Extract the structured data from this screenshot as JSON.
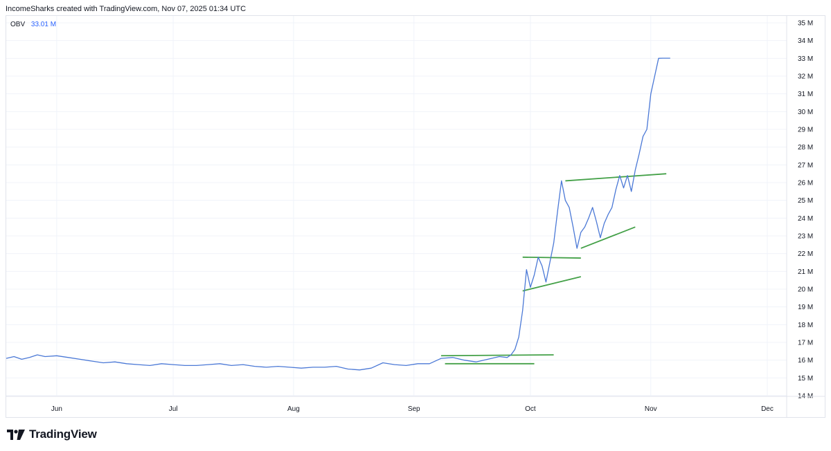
{
  "header": {
    "text": "IncomeSharks created with TradingView.com, Nov 07, 2025 01:34 UTC"
  },
  "legend": {
    "name": "OBV",
    "value": "33.01 M"
  },
  "logo": {
    "wordmark": "TradingView"
  },
  "colors": {
    "series": "#4a78d6",
    "trendlines": "#43a047",
    "grid": "#f0f3fa",
    "text": "#131722",
    "legend_value": "#2962ff"
  },
  "chart_data": {
    "type": "line",
    "title": "",
    "xlabel": "",
    "ylabel": "",
    "x_ticks": [
      "Jun",
      "Jul",
      "Aug",
      "Sep",
      "Oct",
      "Nov",
      "Dec"
    ],
    "y_ticks": [
      "14 M",
      "15 M",
      "16 M",
      "17 M",
      "18 M",
      "19 M",
      "20 M",
      "21 M",
      "22 M",
      "23 M",
      "24 M",
      "25 M",
      "26 M",
      "27 M",
      "28 M",
      "29 M",
      "30 M",
      "31 M",
      "32 M",
      "33 M",
      "34 M",
      "35 M"
    ],
    "ylim": [
      13.5,
      35.6
    ],
    "xlim": [
      "2025-05-19",
      "2025-12-06"
    ],
    "grid": true,
    "series": [
      {
        "name": "OBV",
        "x": [
          "2025-05-19",
          "2025-05-21",
          "2025-05-23",
          "2025-05-25",
          "2025-05-27",
          "2025-05-29",
          "2025-06-01",
          "2025-06-04",
          "2025-06-07",
          "2025-06-10",
          "2025-06-13",
          "2025-06-16",
          "2025-06-19",
          "2025-06-22",
          "2025-06-25",
          "2025-06-28",
          "2025-07-01",
          "2025-07-04",
          "2025-07-07",
          "2025-07-10",
          "2025-07-13",
          "2025-07-16",
          "2025-07-19",
          "2025-07-22",
          "2025-07-25",
          "2025-07-28",
          "2025-07-31",
          "2025-08-03",
          "2025-08-06",
          "2025-08-09",
          "2025-08-12",
          "2025-08-15",
          "2025-08-18",
          "2025-08-21",
          "2025-08-24",
          "2025-08-27",
          "2025-08-30",
          "2025-09-02",
          "2025-09-05",
          "2025-09-08",
          "2025-09-11",
          "2025-09-14",
          "2025-09-17",
          "2025-09-20",
          "2025-09-23",
          "2025-09-25",
          "2025-09-26",
          "2025-09-27",
          "2025-09-28",
          "2025-09-29",
          "2025-09-30",
          "2025-10-01",
          "2025-10-02",
          "2025-10-03",
          "2025-10-04",
          "2025-10-05",
          "2025-10-06",
          "2025-10-07",
          "2025-10-08",
          "2025-10-09",
          "2025-10-10",
          "2025-10-11",
          "2025-10-12",
          "2025-10-13",
          "2025-10-14",
          "2025-10-15",
          "2025-10-16",
          "2025-10-17",
          "2025-10-18",
          "2025-10-19",
          "2025-10-20",
          "2025-10-21",
          "2025-10-22",
          "2025-10-23",
          "2025-10-24",
          "2025-10-25",
          "2025-10-26",
          "2025-10-27",
          "2025-10-28",
          "2025-10-29",
          "2025-10-30",
          "2025-10-31",
          "2025-11-01",
          "2025-11-02",
          "2025-11-03",
          "2025-11-04",
          "2025-11-05",
          "2025-11-06"
        ],
        "values": [
          16.1,
          16.2,
          16.05,
          16.15,
          16.3,
          16.2,
          16.25,
          16.15,
          16.05,
          15.95,
          15.85,
          15.9,
          15.8,
          15.75,
          15.7,
          15.8,
          15.75,
          15.7,
          15.7,
          15.75,
          15.8,
          15.7,
          15.75,
          15.65,
          15.6,
          15.65,
          15.6,
          15.55,
          15.6,
          15.6,
          15.65,
          15.5,
          15.45,
          15.55,
          15.85,
          15.75,
          15.7,
          15.8,
          15.8,
          16.1,
          16.15,
          16.0,
          15.9,
          16.05,
          16.2,
          16.15,
          16.3,
          16.6,
          17.3,
          18.8,
          21.1,
          20.1,
          20.8,
          21.8,
          21.3,
          20.4,
          21.5,
          22.6,
          24.4,
          26.1,
          25.0,
          24.6,
          23.5,
          22.3,
          23.2,
          23.5,
          24.0,
          24.6,
          23.8,
          22.9,
          23.7,
          24.2,
          24.6,
          25.6,
          26.4,
          25.7,
          26.4,
          25.5,
          26.7,
          27.6,
          28.6,
          29.0,
          31.0,
          32.0,
          33.0,
          33.01,
          33.01,
          33.01
        ]
      }
    ],
    "trendlines": [
      {
        "from": [
          "2025-09-08",
          16.25
        ],
        "to": [
          "2025-10-07",
          16.3
        ]
      },
      {
        "from": [
          "2025-09-09",
          15.8
        ],
        "to": [
          "2025-10-02",
          15.8
        ]
      },
      {
        "from": [
          "2025-09-29",
          21.8
        ],
        "to": [
          "2025-10-14",
          21.75
        ]
      },
      {
        "from": [
          "2025-09-29",
          19.9
        ],
        "to": [
          "2025-10-14",
          20.7
        ]
      },
      {
        "from": [
          "2025-10-10",
          26.1
        ],
        "to": [
          "2025-11-05",
          26.5
        ]
      },
      {
        "from": [
          "2025-10-14",
          22.3
        ],
        "to": [
          "2025-10-28",
          23.5
        ]
      }
    ]
  }
}
